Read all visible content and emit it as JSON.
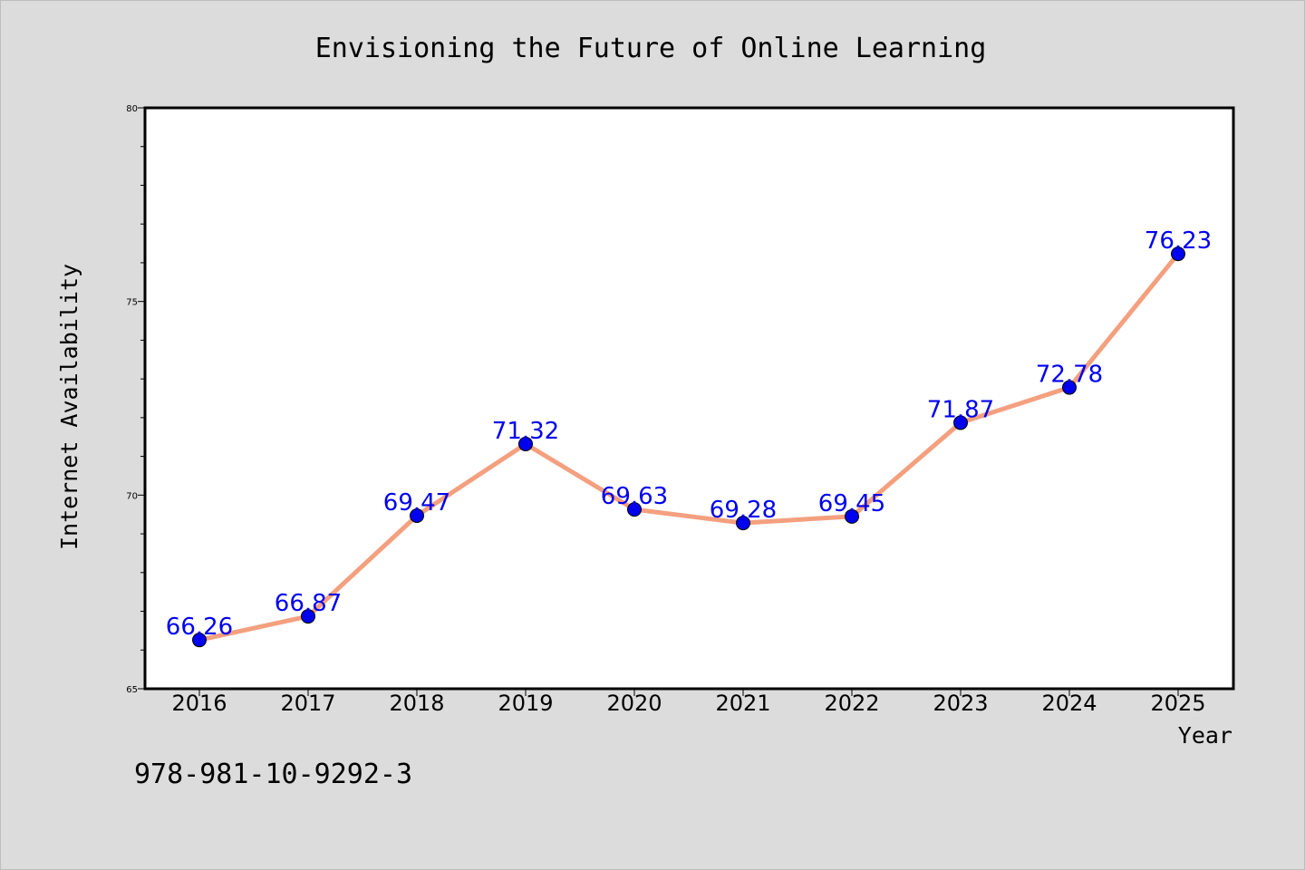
{
  "chart_data": {
    "type": "line",
    "title": "Envisioning the Future of Online Learning",
    "xlabel": "Year",
    "ylabel": "Internet Availability",
    "x": [
      "2016",
      "2017",
      "2018",
      "2019",
      "2020",
      "2021",
      "2022",
      "2023",
      "2024",
      "2025"
    ],
    "series": [
      {
        "values": [
          66.26,
          66.87,
          69.47,
          71.32,
          69.63,
          69.28,
          69.45,
          71.87,
          72.78,
          76.23
        ],
        "labels": [
          "66.26",
          "66.87",
          "69.47",
          "71.32",
          "69.63",
          "69.28",
          "69.45",
          "71.87",
          "72.78",
          "76.23"
        ]
      }
    ],
    "ylim": [
      65,
      80
    ],
    "yticks": [
      "65",
      "70",
      "75",
      "80"
    ],
    "grid": false,
    "line_color": "#f4a07f",
    "marker_color": "#0000ee",
    "label_color": "#0000ee"
  },
  "footer": {
    "isbn": "978-981-10-9292-3"
  }
}
